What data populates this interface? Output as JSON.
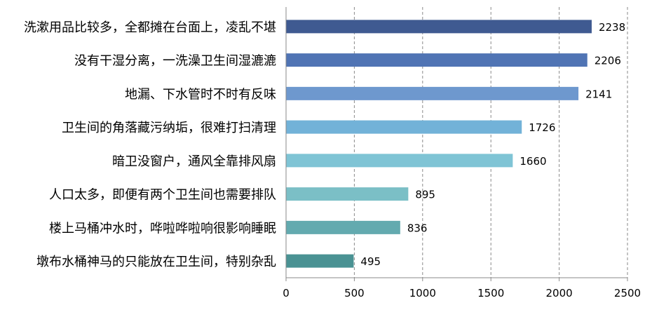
{
  "chart_data": {
    "type": "bar",
    "orientation": "horizontal",
    "categories": [
      "洗漱用品比较多，全都摊在台面上，凌乱不堪",
      "没有干湿分离，一洗澡卫生间湿漉漉",
      "地漏、下水管时不时有反味",
      "卫生间的角落藏污纳垢，很难打扫清理",
      "暗卫没窗户，通风全靠排风扇",
      "人口太多，即便有两个卫生间也需要排队",
      "楼上马桶冲水时，哗啦哗啦响很影响睡眠",
      "墩布水桶神马的只能放在卫生间，特别杂乱"
    ],
    "values": [
      2238,
      2206,
      2141,
      1726,
      1660,
      895,
      836,
      495
    ],
    "value_labels": [
      "2238",
      "2206",
      "2141",
      "1726",
      "1660",
      "895",
      "836",
      "495"
    ],
    "bar_colors": [
      "#3f5a91",
      "#5074b4",
      "#6e98ce",
      "#72b2d8",
      "#7fc4d5",
      "#7bbfc6",
      "#63aaaf",
      "#4a9293"
    ],
    "xlim": [
      0,
      2500
    ],
    "x_ticks": [
      0,
      500,
      1000,
      1500,
      2000,
      2500
    ],
    "x_tick_labels": [
      "0",
      "500",
      "1000",
      "1500",
      "2000",
      "2500"
    ],
    "grid": "vertical dashed",
    "legend": "none",
    "title": "",
    "xlabel": "",
    "ylabel": ""
  }
}
